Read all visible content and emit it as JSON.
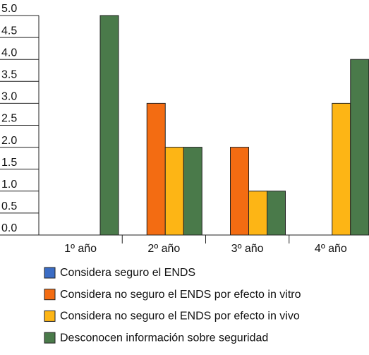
{
  "chart_data": {
    "type": "bar",
    "categories": [
      "1º año",
      "2º año",
      "3º año",
      "4º año"
    ],
    "series": [
      {
        "name": "Considera seguro el ENDS",
        "color": "#3b6cc4",
        "values": [
          0,
          0,
          0,
          0
        ]
      },
      {
        "name": "Considera no seguro el ENDS por efecto in vitro",
        "color": "#f36c12",
        "values": [
          0,
          3,
          2,
          0
        ]
      },
      {
        "name": "Considera no seguro el ENDS por efecto in vivo",
        "color": "#fdb515",
        "values": [
          0,
          2,
          1,
          3
        ]
      },
      {
        "name": "Desconocen información sobre seguridad",
        "color": "#4a7a4a",
        "values": [
          5,
          2,
          1,
          4
        ]
      }
    ],
    "ylim": [
      0,
      5
    ],
    "yticks": [
      {
        "value": 0,
        "label": "0.0"
      },
      0.5,
      {
        "value": 1,
        "label": "1.0"
      },
      1.5,
      {
        "value": 2,
        "label": "2.0"
      },
      2.5,
      {
        "value": 3,
        "label": "3.0"
      },
      3.5,
      {
        "value": 4,
        "label": "4.0"
      },
      4.5,
      {
        "value": 5,
        "label": "5.0"
      }
    ],
    "legend": "bottom"
  }
}
